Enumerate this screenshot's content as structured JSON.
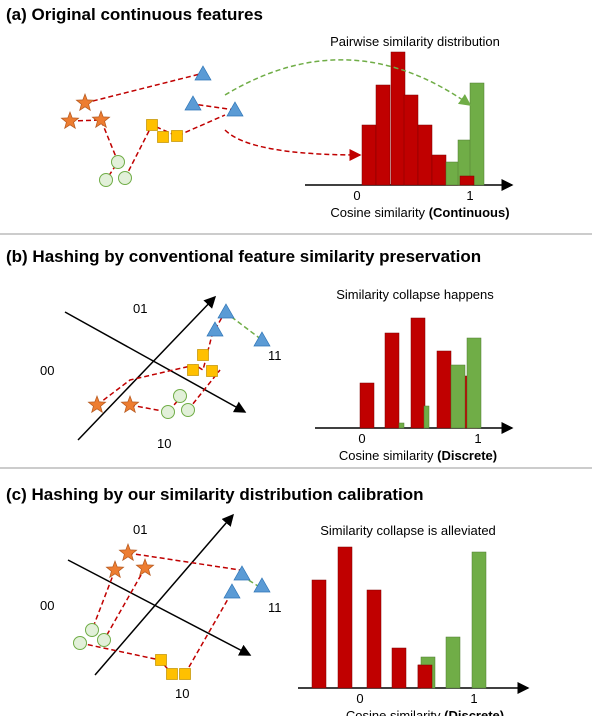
{
  "panels": [
    {
      "title": "(a) Original continuous features",
      "caption": "Pairwise similarity distribution",
      "xlabel": "Cosine similarity",
      "xlabel_bold": "(Continuous)",
      "ticks": [
        "0",
        "1"
      ]
    },
    {
      "title": "(b) Hashing by conventional feature similarity preservation",
      "caption": "Similarity collapse happens",
      "xlabel": "Cosine similarity",
      "xlabel_bold": "(Discrete)",
      "ticks": [
        "0",
        "1"
      ],
      "codes": [
        "01",
        "00",
        "11",
        "10"
      ]
    },
    {
      "title": "(c) Hashing by our similarity distribution calibration",
      "caption": "Similarity collapse is alleviated",
      "xlabel": "Cosine similarity",
      "xlabel_bold": "(Discrete)",
      "ticks": [
        "0",
        "1"
      ],
      "codes": [
        "01",
        "00",
        "11",
        "10"
      ]
    }
  ]
}
